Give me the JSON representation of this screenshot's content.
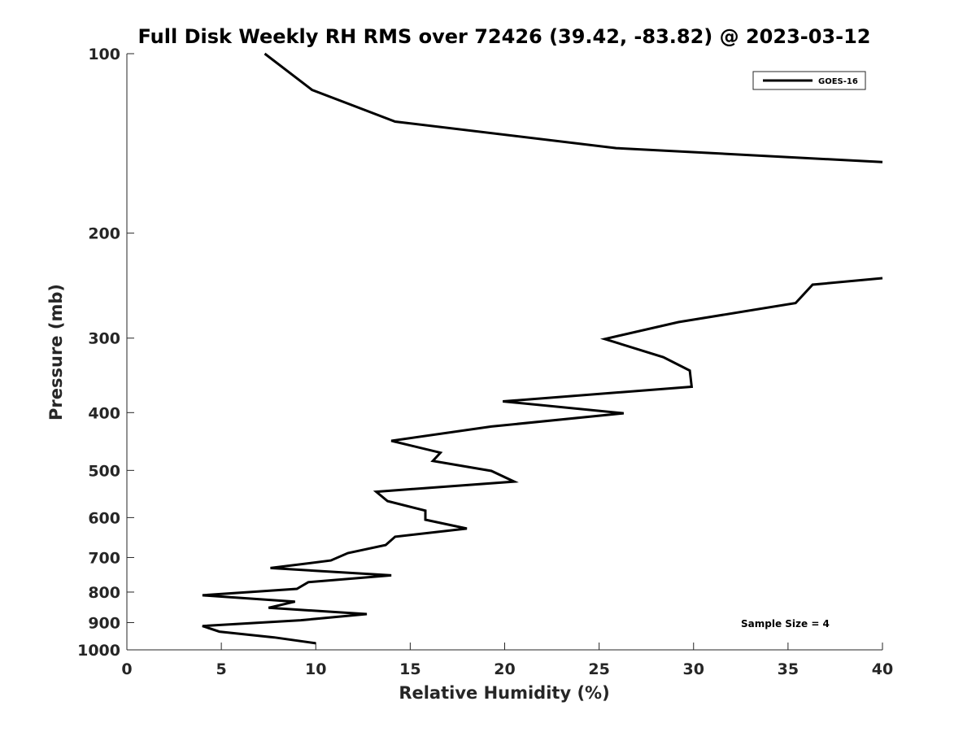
{
  "chart_data": {
    "type": "line",
    "title": "Full Disk Weekly RH RMS over 72426 (39.42, -83.82) @ 2023-03-12",
    "xlabel": "Relative Humidity (%)",
    "ylabel": "Pressure (mb)",
    "xlim": [
      0,
      40
    ],
    "ylim": [
      100,
      1000
    ],
    "yscale": "log",
    "yaxis_direction": "reversed",
    "x_ticks": [
      0,
      5,
      10,
      15,
      20,
      25,
      30,
      35,
      40
    ],
    "y_ticks": [
      100,
      200,
      300,
      400,
      500,
      600,
      700,
      800,
      900,
      1000
    ],
    "grid": false,
    "legend_position": "top-right",
    "annotation": "Sample Size = 4",
    "line_color": "#000000",
    "series": [
      {
        "name": "GOES-16",
        "segments": [
          {
            "points": [
              [
                7.3,
                100
              ],
              [
                9.8,
                115
              ],
              [
                14.2,
                130
              ],
              [
                25.9,
                144
              ],
              [
                40,
                152
              ]
            ]
          },
          {
            "points": [
              [
                40,
                238
              ],
              [
                36.3,
                244
              ],
              [
                35.4,
                262
              ],
              [
                29.2,
                282
              ],
              [
                25.3,
                301
              ],
              [
                28.4,
                323
              ],
              [
                29.8,
                340
              ],
              [
                29.9,
                362
              ],
              [
                19.9,
                383
              ],
              [
                26.3,
                401
              ],
              [
                19.3,
                422
              ],
              [
                14.0,
                446
              ],
              [
                16.6,
                467
              ],
              [
                16.2,
                482
              ],
              [
                19.3,
                501
              ],
              [
                20.5,
                522
              ],
              [
                13.2,
                543
              ],
              [
                13.8,
                563
              ],
              [
                15.8,
                584
              ],
              [
                15.8,
                605
              ],
              [
                18.0,
                626
              ],
              [
                14.2,
                646
              ],
              [
                13.7,
                667
              ],
              [
                11.7,
                688
              ],
              [
                10.8,
                708
              ],
              [
                7.6,
                729
              ],
              [
                14.0,
                750
              ],
              [
                9.6,
                770
              ],
              [
                9.0,
                790
              ],
              [
                4.0,
                810
              ],
              [
                8.9,
                830
              ],
              [
                7.5,
                850
              ],
              [
                12.7,
                871
              ],
              [
                9.2,
                892
              ],
              [
                4.0,
                912
              ],
              [
                4.9,
                932
              ],
              [
                7.8,
                953
              ],
              [
                10.0,
                975
              ]
            ]
          }
        ]
      }
    ]
  }
}
